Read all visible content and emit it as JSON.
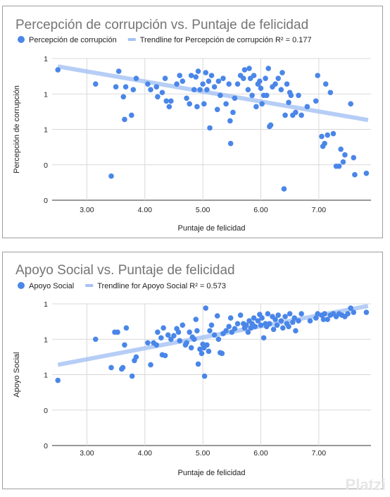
{
  "watermark": "Platzi",
  "chart_data": [
    {
      "type": "scatter",
      "title": "Percepción de corrupción vs. Puntaje de felicidad",
      "xlabel": "Puntaje de felicidad",
      "ylabel": "Percepción de corrupción",
      "xlim": [
        2.4,
        7.9
      ],
      "ylim": [
        0,
        0.5
      ],
      "x_ticks": [
        "3.00",
        "4.00",
        "5.00",
        "6.00",
        "7.00"
      ],
      "x_tick_values": [
        3,
        4,
        5,
        6,
        7
      ],
      "y_ticks": [
        "0",
        "0",
        "1",
        "1",
        "1"
      ],
      "y_tick_values": [
        0,
        0.125,
        0.25,
        0.375,
        0.5
      ],
      "legend_position": "top",
      "colors": {
        "points": "#4a86e8",
        "trend": "#a4c2f4"
      },
      "series": [
        {
          "name": "Percepción de corrupción",
          "role": "points",
          "points": [
            [
              2.5,
              0.46
            ],
            [
              3.15,
              0.41
            ],
            [
              3.42,
              0.085
            ],
            [
              3.5,
              0.4
            ],
            [
              3.55,
              0.455
            ],
            [
              3.63,
              0.365
            ],
            [
              3.65,
              0.285
            ],
            [
              3.67,
              0.4
            ],
            [
              3.77,
              0.3
            ],
            [
              3.8,
              0.39
            ],
            [
              3.85,
              0.43
            ],
            [
              4.05,
              0.41
            ],
            [
              4.1,
              0.39
            ],
            [
              4.2,
              0.4
            ],
            [
              4.22,
              0.365
            ],
            [
              4.3,
              0.38
            ],
            [
              4.35,
              0.43
            ],
            [
              4.37,
              0.35
            ],
            [
              4.42,
              0.33
            ],
            [
              4.45,
              0.35
            ],
            [
              4.55,
              0.41
            ],
            [
              4.6,
              0.44
            ],
            [
              4.65,
              0.42
            ],
            [
              4.72,
              0.36
            ],
            [
              4.77,
              0.34
            ],
            [
              4.8,
              0.44
            ],
            [
              4.85,
              0.39
            ],
            [
              4.88,
              0.435
            ],
            [
              4.9,
              0.33
            ],
            [
              4.92,
              0.455
            ],
            [
              4.95,
              0.39
            ],
            [
              5.0,
              0.41
            ],
            [
              5.02,
              0.34
            ],
            [
              5.05,
              0.45
            ],
            [
              5.07,
              0.39
            ],
            [
              5.1,
              0.42
            ],
            [
              5.12,
              0.255
            ],
            [
              5.15,
              0.44
            ],
            [
              5.2,
              0.4
            ],
            [
              5.25,
              0.32
            ],
            [
              5.27,
              0.42
            ],
            [
              5.3,
              0.37
            ],
            [
              5.35,
              0.43
            ],
            [
              5.4,
              0.34
            ],
            [
              5.45,
              0.41
            ],
            [
              5.47,
              0.28
            ],
            [
              5.48,
              0.2
            ],
            [
              5.52,
              0.31
            ],
            [
              5.55,
              0.36
            ],
            [
              5.6,
              0.41
            ],
            [
              5.65,
              0.44
            ],
            [
              5.7,
              0.43
            ],
            [
              5.72,
              0.46
            ],
            [
              5.78,
              0.39
            ],
            [
              5.8,
              0.465
            ],
            [
              5.82,
              0.43
            ],
            [
              5.85,
              0.37
            ],
            [
              5.88,
              0.44
            ],
            [
              5.92,
              0.33
            ],
            [
              5.95,
              0.41
            ],
            [
              5.98,
              0.42
            ],
            [
              6.0,
              0.395
            ],
            [
              6.02,
              0.34
            ],
            [
              6.05,
              0.37
            ],
            [
              6.08,
              0.43
            ],
            [
              6.1,
              0.37
            ],
            [
              6.13,
              0.465
            ],
            [
              6.15,
              0.26
            ],
            [
              6.17,
              0.265
            ],
            [
              6.2,
              0.4
            ],
            [
              6.25,
              0.41
            ],
            [
              6.3,
              0.43
            ],
            [
              6.35,
              0.39
            ],
            [
              6.37,
              0.45
            ],
            [
              6.4,
              0.04
            ],
            [
              6.42,
              0.3
            ],
            [
              6.45,
              0.41
            ],
            [
              6.48,
              0.345
            ],
            [
              6.5,
              0.38
            ],
            [
              6.52,
              0.37
            ],
            [
              6.55,
              0.3
            ],
            [
              6.6,
              0.31
            ],
            [
              6.65,
              0.37
            ],
            [
              6.7,
              0.3
            ],
            [
              6.8,
              0.33
            ],
            [
              6.95,
              0.35
            ],
            [
              6.98,
              0.44
            ],
            [
              7.05,
              0.225
            ],
            [
              7.07,
              0.19
            ],
            [
              7.1,
              0.2
            ],
            [
              7.12,
              0.41
            ],
            [
              7.15,
              0.23
            ],
            [
              7.2,
              0.38
            ],
            [
              7.25,
              0.235
            ],
            [
              7.3,
              0.12
            ],
            [
              7.35,
              0.12
            ],
            [
              7.38,
              0.18
            ],
            [
              7.42,
              0.135
            ],
            [
              7.45,
              0.16
            ],
            [
              7.55,
              0.34
            ],
            [
              7.6,
              0.15
            ],
            [
              7.62,
              0.09
            ],
            [
              7.82,
              0.095
            ]
          ]
        },
        {
          "name": "Trendline for Percepción de corrupción R² = 0.177",
          "role": "trend",
          "points": [
            [
              2.5,
              0.472
            ],
            [
              7.85,
              0.283
            ]
          ]
        }
      ]
    },
    {
      "type": "scatter",
      "title": "Apoyo Social vs. Puntaje de felicidad",
      "xlabel": "Puntaje de felicidad",
      "ylabel": "Apoyo Social",
      "xlim": [
        2.4,
        7.9
      ],
      "ylim": [
        0,
        2
      ],
      "x_ticks": [
        "3.00",
        "4.00",
        "5.00",
        "6.00",
        "7.00"
      ],
      "x_tick_values": [
        3,
        4,
        5,
        6,
        7
      ],
      "y_ticks": [
        "0",
        "0",
        "1",
        "1",
        "1"
      ],
      "y_tick_values": [
        0,
        0.5,
        1,
        1.5,
        2
      ],
      "legend_position": "top",
      "colors": {
        "points": "#4a86e8",
        "trend": "#a4c2f4"
      },
      "series": [
        {
          "name": "Apoyo Social",
          "role": "points",
          "points": [
            [
              2.5,
              0.92
            ],
            [
              3.15,
              1.5
            ],
            [
              3.42,
              1.1
            ],
            [
              3.48,
              1.6
            ],
            [
              3.53,
              1.6
            ],
            [
              3.6,
              1.08
            ],
            [
              3.62,
              1.1
            ],
            [
              3.65,
              1.42
            ],
            [
              3.68,
              1.66
            ],
            [
              3.78,
              0.98
            ],
            [
              3.82,
              1.2
            ],
            [
              3.85,
              1.25
            ],
            [
              4.05,
              1.45
            ],
            [
              4.1,
              1.14
            ],
            [
              4.15,
              1.45
            ],
            [
              4.2,
              1.42
            ],
            [
              4.22,
              1.6
            ],
            [
              4.28,
              1.52
            ],
            [
              4.3,
              1.28
            ],
            [
              4.32,
              1.66
            ],
            [
              4.35,
              1.27
            ],
            [
              4.4,
              1.56
            ],
            [
              4.45,
              1.5
            ],
            [
              4.5,
              1.55
            ],
            [
              4.55,
              1.65
            ],
            [
              4.58,
              1.6
            ],
            [
              4.6,
              1.48
            ],
            [
              4.65,
              1.7
            ],
            [
              4.7,
              1.42
            ],
            [
              4.72,
              1.45
            ],
            [
              4.77,
              1.6
            ],
            [
              4.8,
              1.38
            ],
            [
              4.82,
              1.53
            ],
            [
              4.85,
              1.5
            ],
            [
              4.88,
              1.78
            ],
            [
              4.9,
              1.62
            ],
            [
              4.92,
              1.15
            ],
            [
              4.95,
              1.36
            ],
            [
              4.98,
              1.3
            ],
            [
              5.0,
              1.43
            ],
            [
              5.02,
              1.38
            ],
            [
              5.03,
              0.98
            ],
            [
              5.05,
              1.94
            ],
            [
              5.07,
              1.42
            ],
            [
              5.1,
              1.33
            ],
            [
              5.12,
              1.62
            ],
            [
              5.15,
              1.7
            ],
            [
              5.2,
              1.56
            ],
            [
              5.25,
              1.83
            ],
            [
              5.27,
              1.5
            ],
            [
              5.3,
              1.31
            ],
            [
              5.33,
              1.3
            ],
            [
              5.35,
              1.58
            ],
            [
              5.4,
              1.62
            ],
            [
              5.45,
              1.68
            ],
            [
              5.48,
              1.8
            ],
            [
              5.5,
              1.6
            ],
            [
              5.55,
              1.65
            ],
            [
              5.6,
              1.72
            ],
            [
              5.65,
              1.84
            ],
            [
              5.7,
              1.72
            ],
            [
              5.72,
              1.66
            ],
            [
              5.75,
              1.7
            ],
            [
              5.78,
              1.6
            ],
            [
              5.8,
              1.76
            ],
            [
              5.83,
              1.66
            ],
            [
              5.85,
              1.72
            ],
            [
              5.88,
              1.8
            ],
            [
              5.9,
              1.68
            ],
            [
              5.95,
              1.76
            ],
            [
              5.98,
              1.85
            ],
            [
              6.0,
              1.7
            ],
            [
              6.02,
              1.8
            ],
            [
              6.05,
              1.52
            ],
            [
              6.08,
              1.72
            ],
            [
              6.1,
              1.68
            ],
            [
              6.12,
              1.86
            ],
            [
              6.15,
              1.72
            ],
            [
              6.2,
              1.82
            ],
            [
              6.22,
              1.64
            ],
            [
              6.25,
              1.78
            ],
            [
              6.28,
              1.7
            ],
            [
              6.3,
              1.84
            ],
            [
              6.35,
              1.76
            ],
            [
              6.38,
              1.66
            ],
            [
              6.42,
              1.82
            ],
            [
              6.45,
              1.72
            ],
            [
              6.48,
              1.68
            ],
            [
              6.5,
              1.86
            ],
            [
              6.55,
              1.74
            ],
            [
              6.58,
              1.8
            ],
            [
              6.6,
              1.62
            ],
            [
              6.65,
              1.76
            ],
            [
              6.7,
              1.86
            ],
            [
              6.85,
              1.76
            ],
            [
              6.95,
              1.8
            ],
            [
              6.98,
              1.86
            ],
            [
              7.05,
              1.84
            ],
            [
              7.08,
              1.78
            ],
            [
              7.1,
              1.86
            ],
            [
              7.15,
              1.78
            ],
            [
              7.2,
              1.84
            ],
            [
              7.25,
              1.86
            ],
            [
              7.3,
              1.82
            ],
            [
              7.35,
              1.86
            ],
            [
              7.4,
              1.84
            ],
            [
              7.45,
              1.82
            ],
            [
              7.5,
              1.86
            ],
            [
              7.55,
              1.94
            ],
            [
              7.6,
              1.88
            ],
            [
              7.82,
              1.88
            ]
          ]
        },
        {
          "name": "Trendline for Apoyo Social R² = 0.573",
          "role": "trend",
          "points": [
            [
              2.5,
              1.14
            ],
            [
              7.85,
              1.97
            ]
          ]
        }
      ]
    }
  ]
}
